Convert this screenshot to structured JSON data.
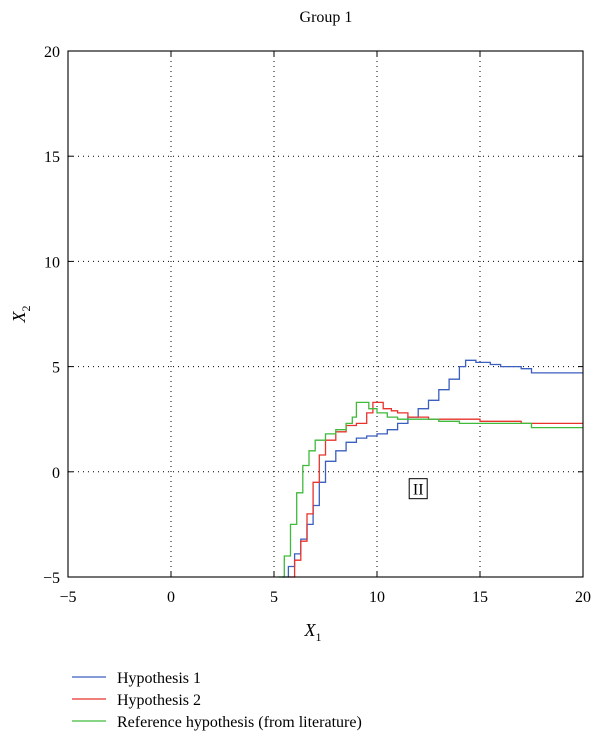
{
  "chart_data": {
    "type": "line",
    "title": "Group 1",
    "xlabel": {
      "main": "X",
      "sub": "1"
    },
    "ylabel": {
      "main": "X",
      "sub": "2"
    },
    "xlim": [
      -5,
      20
    ],
    "ylim": [
      -5,
      20
    ],
    "xticks": [
      -5,
      0,
      5,
      10,
      15,
      20
    ],
    "yticks": [
      -5,
      0,
      5,
      10,
      15,
      20
    ],
    "xtick_labels": [
      "−5",
      "0",
      "5",
      "10",
      "15",
      "20"
    ],
    "ytick_labels": [
      "−5",
      "0",
      "5",
      "10",
      "15",
      "20"
    ],
    "grid": true,
    "legend_position": "bottom-left, below plot",
    "annotations": [
      {
        "text": "II",
        "x": 12.0,
        "y": -0.85
      }
    ],
    "series": [
      {
        "name": "Hypothesis 1",
        "color": "#3a5fbf",
        "x": [
          5.4,
          5.7,
          6.0,
          6.3,
          6.6,
          6.9,
          7.2,
          7.5,
          8.0,
          8.5,
          9.0,
          9.5,
          10.0,
          10.5,
          11.0,
          11.5,
          12.0,
          12.5,
          13.0,
          13.5,
          14.0,
          14.3,
          14.6,
          14.8,
          15.0,
          15.5,
          16.0,
          16.5,
          17.0,
          17.5,
          18.0,
          18.5,
          19.0,
          19.5,
          20.0
        ],
        "y": [
          -5.0,
          -4.5,
          -3.9,
          -3.2,
          -2.5,
          -1.6,
          -0.5,
          0.5,
          1.0,
          1.4,
          1.6,
          1.7,
          1.8,
          2.0,
          2.3,
          2.6,
          3.0,
          3.4,
          3.9,
          4.4,
          5.0,
          5.3,
          5.3,
          5.2,
          5.2,
          5.1,
          5.0,
          5.0,
          4.9,
          4.7,
          4.7,
          4.7,
          4.7,
          4.7,
          4.7
        ]
      },
      {
        "name": "Hypothesis 2",
        "color": "#e8322c",
        "x": [
          5.7,
          6.0,
          6.3,
          6.6,
          6.9,
          7.2,
          7.5,
          8.0,
          8.5,
          9.0,
          9.5,
          9.8,
          10.0,
          10.3,
          10.7,
          11.0,
          11.5,
          12.0,
          12.5,
          13.0,
          14.0,
          15.0,
          16.0,
          17.0,
          18.0,
          19.0,
          20.0
        ],
        "y": [
          -5.0,
          -4.2,
          -3.3,
          -2.0,
          -0.5,
          0.8,
          1.5,
          1.9,
          2.2,
          2.3,
          2.8,
          3.3,
          3.3,
          3.0,
          2.9,
          2.8,
          2.6,
          2.6,
          2.5,
          2.5,
          2.5,
          2.4,
          2.4,
          2.3,
          2.3,
          2.3,
          2.3
        ]
      },
      {
        "name": "Reference hypothesis (from literature)",
        "color": "#3fba3b",
        "x": [
          5.2,
          5.5,
          5.8,
          6.1,
          6.4,
          6.7,
          7.0,
          7.5,
          8.0,
          8.5,
          8.8,
          9.0,
          9.3,
          9.6,
          10.0,
          10.5,
          11.0,
          12.0,
          13.0,
          14.0,
          15.0,
          16.0,
          17.0,
          17.5,
          18.0,
          19.0,
          20.0
        ],
        "y": [
          -5.0,
          -4.0,
          -2.5,
          -1.0,
          0.3,
          1.0,
          1.5,
          1.8,
          2.0,
          2.3,
          2.6,
          3.3,
          3.3,
          3.0,
          2.8,
          2.6,
          2.5,
          2.5,
          2.4,
          2.3,
          2.3,
          2.3,
          2.3,
          2.1,
          2.1,
          2.1,
          2.1
        ]
      }
    ]
  }
}
